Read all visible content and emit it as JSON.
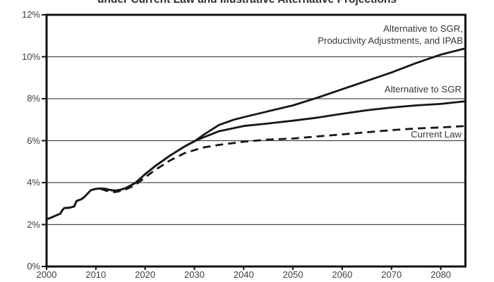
{
  "chart_data": {
    "type": "line",
    "title": "under Current Law and Illustrative Alternative Projections",
    "xlabel": "",
    "ylabel": "",
    "xlim": [
      2000,
      2085
    ],
    "ylim": [
      0,
      12
    ],
    "grid": "horizontal",
    "x_ticks": [
      2000,
      2010,
      2020,
      2030,
      2040,
      2050,
      2060,
      2070,
      2080
    ],
    "x_tick_labels": [
      "2000",
      "2010",
      "2020",
      "2030",
      "2040",
      "2050",
      "2060",
      "2070",
      "2080"
    ],
    "y_ticks": [
      0,
      2,
      4,
      6,
      8,
      10,
      12
    ],
    "y_tick_labels": [
      "0%",
      "2%",
      "4%",
      "6%",
      "8%",
      "10%",
      "12%"
    ],
    "colors": {
      "line": "#15171b",
      "grid": "#4a4a4a",
      "frame": "#111111",
      "text": "#33363b"
    },
    "legend_position": "inline-right",
    "series": [
      {
        "name": "Alternative to SGR, Productivity Adjustments, and IPAB",
        "style": "solid",
        "points": [
          [
            2000,
            2.25
          ],
          [
            2001,
            2.34
          ],
          [
            2002,
            2.44
          ],
          [
            2002.8,
            2.52
          ],
          [
            2003.1,
            2.65
          ],
          [
            2003.6,
            2.79
          ],
          [
            2004.6,
            2.8
          ],
          [
            2005.6,
            2.86
          ],
          [
            2006.1,
            3.13
          ],
          [
            2007,
            3.2
          ],
          [
            2007.6,
            3.3
          ],
          [
            2008.5,
            3.52
          ],
          [
            2009,
            3.64
          ],
          [
            2010,
            3.7
          ],
          [
            2011,
            3.72
          ],
          [
            2012,
            3.7
          ],
          [
            2013,
            3.64
          ],
          [
            2014,
            3.62
          ],
          [
            2015,
            3.66
          ],
          [
            2016,
            3.73
          ],
          [
            2018,
            3.98
          ],
          [
            2020,
            4.4
          ],
          [
            2022,
            4.78
          ],
          [
            2025,
            5.28
          ],
          [
            2028,
            5.72
          ],
          [
            2030,
            5.97
          ],
          [
            2032,
            6.3
          ],
          [
            2035,
            6.75
          ],
          [
            2038,
            7.0
          ],
          [
            2040,
            7.12
          ],
          [
            2045,
            7.4
          ],
          [
            2050,
            7.68
          ],
          [
            2055,
            8.05
          ],
          [
            2060,
            8.45
          ],
          [
            2065,
            8.85
          ],
          [
            2070,
            9.25
          ],
          [
            2075,
            9.7
          ],
          [
            2080,
            10.1
          ],
          [
            2085,
            10.4
          ]
        ]
      },
      {
        "name": "Alternative to SGR",
        "style": "solid",
        "points": [
          [
            2000,
            2.25
          ],
          [
            2001,
            2.34
          ],
          [
            2002,
            2.44
          ],
          [
            2002.8,
            2.52
          ],
          [
            2003.1,
            2.65
          ],
          [
            2003.6,
            2.79
          ],
          [
            2004.6,
            2.8
          ],
          [
            2005.6,
            2.86
          ],
          [
            2006.1,
            3.13
          ],
          [
            2007,
            3.2
          ],
          [
            2007.6,
            3.3
          ],
          [
            2008.5,
            3.52
          ],
          [
            2009,
            3.64
          ],
          [
            2010,
            3.7
          ],
          [
            2011,
            3.72
          ],
          [
            2012,
            3.7
          ],
          [
            2013,
            3.64
          ],
          [
            2014,
            3.62
          ],
          [
            2015,
            3.66
          ],
          [
            2016,
            3.73
          ],
          [
            2018,
            3.98
          ],
          [
            2020,
            4.4
          ],
          [
            2022,
            4.78
          ],
          [
            2025,
            5.28
          ],
          [
            2028,
            5.72
          ],
          [
            2030,
            5.97
          ],
          [
            2032,
            6.17
          ],
          [
            2035,
            6.45
          ],
          [
            2038,
            6.6
          ],
          [
            2040,
            6.7
          ],
          [
            2045,
            6.82
          ],
          [
            2050,
            6.95
          ],
          [
            2055,
            7.1
          ],
          [
            2060,
            7.28
          ],
          [
            2065,
            7.45
          ],
          [
            2070,
            7.58
          ],
          [
            2075,
            7.68
          ],
          [
            2080,
            7.75
          ],
          [
            2085,
            7.88
          ]
        ]
      },
      {
        "name": "Current Law",
        "style": "dashed",
        "points": [
          [
            2011,
            3.7
          ],
          [
            2012,
            3.62
          ],
          [
            2013,
            3.56
          ],
          [
            2014,
            3.55
          ],
          [
            2015,
            3.6
          ],
          [
            2016,
            3.67
          ],
          [
            2018,
            3.88
          ],
          [
            2020,
            4.25
          ],
          [
            2022,
            4.6
          ],
          [
            2025,
            5.05
          ],
          [
            2028,
            5.4
          ],
          [
            2030,
            5.55
          ],
          [
            2032,
            5.68
          ],
          [
            2035,
            5.8
          ],
          [
            2040,
            5.95
          ],
          [
            2045,
            6.05
          ],
          [
            2050,
            6.1
          ],
          [
            2055,
            6.2
          ],
          [
            2060,
            6.3
          ],
          [
            2065,
            6.4
          ],
          [
            2070,
            6.5
          ],
          [
            2075,
            6.58
          ],
          [
            2080,
            6.63
          ],
          [
            2085,
            6.7
          ]
        ]
      }
    ],
    "annotations": [
      {
        "lines": [
          "Alternative to SGR,",
          "Productivity Adjustments, and IPAB"
        ]
      },
      {
        "text": "Alternative to SGR"
      },
      {
        "text": "Current Law"
      }
    ]
  }
}
